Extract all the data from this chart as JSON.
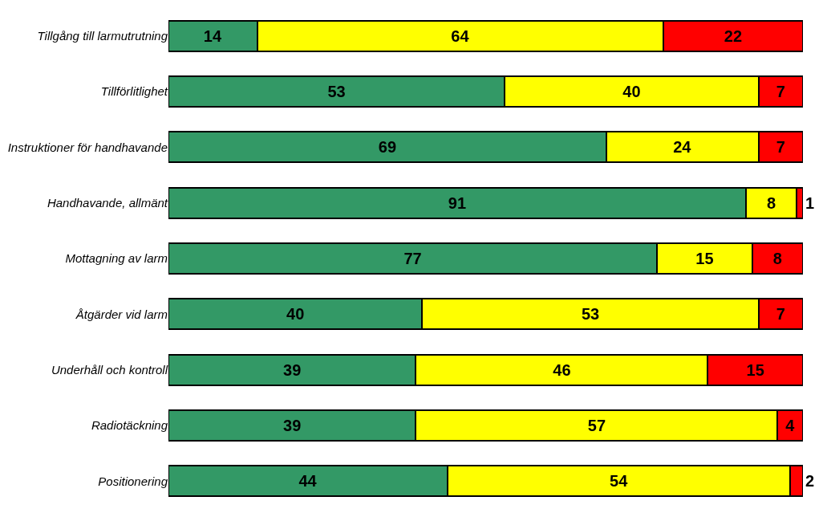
{
  "chart_data": {
    "type": "bar",
    "orientation": "horizontal",
    "stacked": true,
    "data_labels": true,
    "tick_labels": "y",
    "xlim": [
      0,
      100
    ],
    "categories": [
      "Tillgång till larmutrutning",
      "Tillförlitlighet",
      "Instruktioner för handhavande",
      "Handhavande, allmänt",
      "Mottagning av larm",
      "Åtgärder vid larm",
      "Underhåll och kontroll",
      "Radiotäckning",
      "Positionering"
    ],
    "series": [
      {
        "color": "#339966",
        "values": [
          14,
          53,
          69,
          91,
          77,
          40,
          39,
          39,
          44
        ]
      },
      {
        "color": "#ffff00",
        "values": [
          64,
          40,
          24,
          8,
          15,
          53,
          46,
          57,
          54
        ]
      },
      {
        "color": "#ff0000",
        "values": [
          22,
          7,
          7,
          1,
          8,
          7,
          15,
          4,
          2
        ]
      }
    ]
  }
}
